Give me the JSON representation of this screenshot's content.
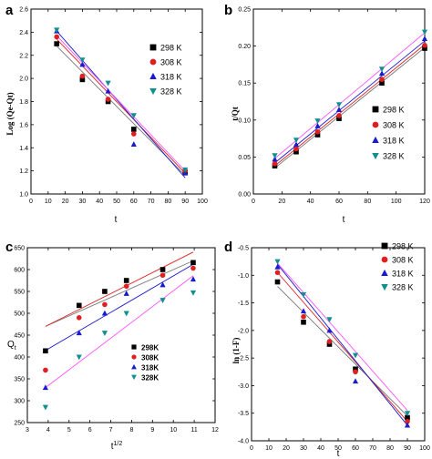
{
  "colors": {
    "298": "#000000",
    "308": "#e02020",
    "318": "#1a1ad0",
    "328": "#0f8f8f"
  },
  "fit_colors": {
    "298": "#777777",
    "308": "#e02020",
    "318": "#1a1ad0",
    "328": "#ff55ff"
  },
  "chart_data": [
    {
      "id": "a",
      "panel_label": "a",
      "type": "scatter",
      "xlabel": "t",
      "ylabel": "Log (Qe-Qt)",
      "xlim": [
        0,
        100
      ],
      "ylim": [
        1.0,
        2.6
      ],
      "xticks": [
        0,
        10,
        20,
        30,
        40,
        50,
        60,
        70,
        80,
        90,
        100
      ],
      "yticks": [
        1.0,
        1.2,
        1.4,
        1.6,
        1.8,
        2.0,
        2.2,
        2.4,
        2.6
      ],
      "ytick_decimals": 1,
      "legend_position": "right",
      "series": [
        {
          "name": "298 K",
          "key": "298",
          "marker": "square",
          "x": [
            15,
            30,
            45,
            60,
            90
          ],
          "y": [
            2.3,
            1.99,
            1.8,
            1.56,
            1.19
          ],
          "fit": [
            [
              15,
              2.28
            ],
            [
              90,
              1.16
            ]
          ]
        },
        {
          "name": "308 K",
          "key": "308",
          "marker": "circle",
          "x": [
            15,
            30,
            45,
            60,
            90
          ],
          "y": [
            2.36,
            2.02,
            1.82,
            1.52,
            1.2
          ],
          "fit": [
            [
              15,
              2.34
            ],
            [
              90,
              1.18
            ]
          ]
        },
        {
          "name": "318 K",
          "key": "318",
          "marker": "triangle",
          "x": [
            15,
            30,
            45,
            60,
            90
          ],
          "y": [
            2.41,
            2.12,
            1.89,
            1.43,
            1.18
          ],
          "fit": [
            [
              15,
              2.41
            ],
            [
              90,
              1.14
            ]
          ]
        },
        {
          "name": "328 K",
          "key": "328",
          "marker": "triangle-down",
          "x": [
            15,
            30,
            45,
            60,
            90
          ],
          "y": [
            2.42,
            2.16,
            1.96,
            1.68,
            1.21
          ],
          "fit": [
            [
              15,
              2.37
            ],
            [
              90,
              1.2
            ]
          ]
        }
      ]
    },
    {
      "id": "b",
      "panel_label": "b",
      "type": "scatter",
      "xlabel": "t",
      "ylabel": "t/Qt",
      "xlim": [
        0,
        120
      ],
      "ylim": [
        0.0,
        0.25
      ],
      "xticks": [
        0,
        20,
        40,
        60,
        80,
        100,
        120
      ],
      "yticks": [
        0.0,
        0.05,
        0.1,
        0.15,
        0.2,
        0.25
      ],
      "ytick_decimals": 2,
      "legend_position": "right",
      "series": [
        {
          "name": "298 K",
          "key": "298",
          "marker": "square",
          "x": [
            15,
            30,
            45,
            60,
            90,
            120
          ],
          "y": [
            0.038,
            0.057,
            0.08,
            0.102,
            0.15,
            0.197
          ],
          "fit": [
            [
              15,
              0.035
            ],
            [
              120,
              0.198
            ]
          ]
        },
        {
          "name": "308 K",
          "key": "308",
          "marker": "circle",
          "x": [
            15,
            30,
            45,
            60,
            90,
            120
          ],
          "y": [
            0.041,
            0.061,
            0.084,
            0.106,
            0.155,
            0.201
          ],
          "fit": [
            [
              15,
              0.038
            ],
            [
              120,
              0.202
            ]
          ]
        },
        {
          "name": "318 K",
          "key": "318",
          "marker": "triangle",
          "x": [
            15,
            30,
            45,
            60,
            90,
            120
          ],
          "y": [
            0.047,
            0.067,
            0.092,
            0.114,
            0.163,
            0.21
          ],
          "fit": [
            [
              15,
              0.042
            ],
            [
              120,
              0.207
            ]
          ]
        },
        {
          "name": "328 K",
          "key": "328",
          "marker": "triangle-down",
          "x": [
            15,
            30,
            45,
            60,
            90,
            120
          ],
          "y": [
            0.052,
            0.073,
            0.099,
            0.121,
            0.169,
            0.219
          ],
          "fit": [
            [
              15,
              0.048
            ],
            [
              120,
              0.218
            ]
          ]
        }
      ]
    },
    {
      "id": "c",
      "panel_label": "c",
      "type": "scatter",
      "xlabel": "t1/2",
      "ylabel": "Qt",
      "xlim": [
        3,
        12
      ],
      "ylim": [
        250,
        650
      ],
      "xticks": [
        3,
        4,
        5,
        6,
        7,
        8,
        9,
        10,
        11,
        12
      ],
      "yticks": [
        250,
        300,
        350,
        400,
        450,
        500,
        550,
        600,
        650
      ],
      "ytick_decimals": 0,
      "legend_position": "center-right",
      "series": [
        {
          "name": "298K",
          "key": "298",
          "marker": "square",
          "x": [
            3.87,
            5.48,
            6.71,
            7.75,
            9.49,
            10.95
          ],
          "y": [
            414,
            518,
            550,
            575,
            600,
            616
          ],
          "fit": [
            [
              3.87,
              470
            ],
            [
              10.95,
              620
            ]
          ]
        },
        {
          "name": "308K",
          "key": "308",
          "marker": "circle",
          "x": [
            3.87,
            5.48,
            6.71,
            7.75,
            9.49,
            10.95
          ],
          "y": [
            370,
            490,
            520,
            562,
            587,
            603
          ],
          "fit": [
            [
              3.87,
              470
            ],
            [
              10.95,
              640
            ]
          ]
        },
        {
          "name": "318K",
          "key": "318",
          "marker": "triangle",
          "x": [
            3.87,
            5.48,
            6.71,
            7.75,
            9.49,
            10.95
          ],
          "y": [
            330,
            455,
            500,
            545,
            565,
            578
          ],
          "fit": [
            [
              3.87,
              415
            ],
            [
              10.95,
              612
            ]
          ]
        },
        {
          "name": "328K",
          "key": "328",
          "marker": "triangle-down",
          "x": [
            3.87,
            5.48,
            6.71,
            7.75,
            9.49,
            10.95
          ],
          "y": [
            285,
            400,
            455,
            500,
            530,
            547
          ],
          "fit": [
            [
              3.87,
              330
            ],
            [
              10.95,
              586
            ]
          ]
        }
      ]
    },
    {
      "id": "d",
      "panel_label": "d",
      "type": "scatter",
      "xlabel": "t",
      "ylabel": "ln (1-F)",
      "xlim": [
        0,
        100
      ],
      "ylim": [
        -4.0,
        -0.5
      ],
      "xticks": [
        0,
        10,
        20,
        30,
        40,
        50,
        60,
        70,
        80,
        90,
        100
      ],
      "yticks": [
        -4.0,
        -3.5,
        -3.0,
        -2.5,
        -2.0,
        -1.5,
        -1.0,
        -0.5
      ],
      "ytick_decimals": 1,
      "legend_position": "top-right",
      "series": [
        {
          "name": "298 K",
          "key": "298",
          "marker": "square",
          "x": [
            15,
            30,
            45,
            60,
            90
          ],
          "y": [
            -1.12,
            -1.85,
            -2.25,
            -2.7,
            -3.58
          ],
          "fit": [
            [
              15,
              -1.2
            ],
            [
              90,
              -3.55
            ]
          ]
        },
        {
          "name": "308 K",
          "key": "308",
          "marker": "circle",
          "x": [
            15,
            30,
            45,
            60,
            90
          ],
          "y": [
            -0.95,
            -1.75,
            -2.2,
            -2.75,
            -3.65
          ],
          "fit": [
            [
              15,
              -0.95
            ],
            [
              90,
              -3.65
            ]
          ]
        },
        {
          "name": "318 K",
          "key": "318",
          "marker": "triangle",
          "x": [
            15,
            30,
            45,
            60,
            90
          ],
          "y": [
            -0.85,
            -1.65,
            -2.0,
            -2.92,
            -3.72
          ],
          "fit": [
            [
              15,
              -0.8
            ],
            [
              90,
              -3.72
            ]
          ]
        },
        {
          "name": "328 K",
          "key": "328",
          "marker": "triangle-down",
          "x": [
            15,
            30,
            45,
            60,
            90
          ],
          "y": [
            -0.75,
            -1.35,
            -1.8,
            -2.45,
            -3.5
          ],
          "fit": [
            [
              15,
              -0.78
            ],
            [
              90,
              -3.45
            ]
          ]
        }
      ]
    }
  ]
}
